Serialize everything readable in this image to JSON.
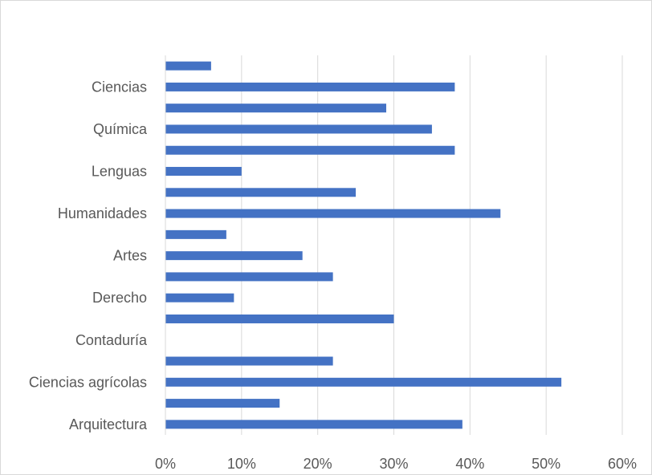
{
  "chart_data": {
    "type": "bar",
    "orientation": "horizontal",
    "categories": [
      "Arquitectura",
      "",
      "Ciencias agrícolas",
      "",
      "Contaduría",
      "",
      "Derecho",
      "",
      "Artes",
      "",
      "Humanidades",
      "",
      "Lenguas",
      "",
      "Química",
      "",
      "Ciencias",
      ""
    ],
    "series": [
      {
        "values": [
          39,
          15,
          52,
          22,
          0,
          30,
          9,
          22,
          18,
          8,
          44,
          25,
          10,
          38,
          35,
          29,
          38,
          6
        ],
        "color": "#4472c4"
      }
    ],
    "xlim": [
      0,
      60
    ],
    "x_ticks": [
      "0%",
      "10%",
      "20%",
      "30%",
      "40%",
      "50%",
      "60%"
    ],
    "value_format": "percent",
    "grid": "vertical",
    "legend": "none"
  }
}
